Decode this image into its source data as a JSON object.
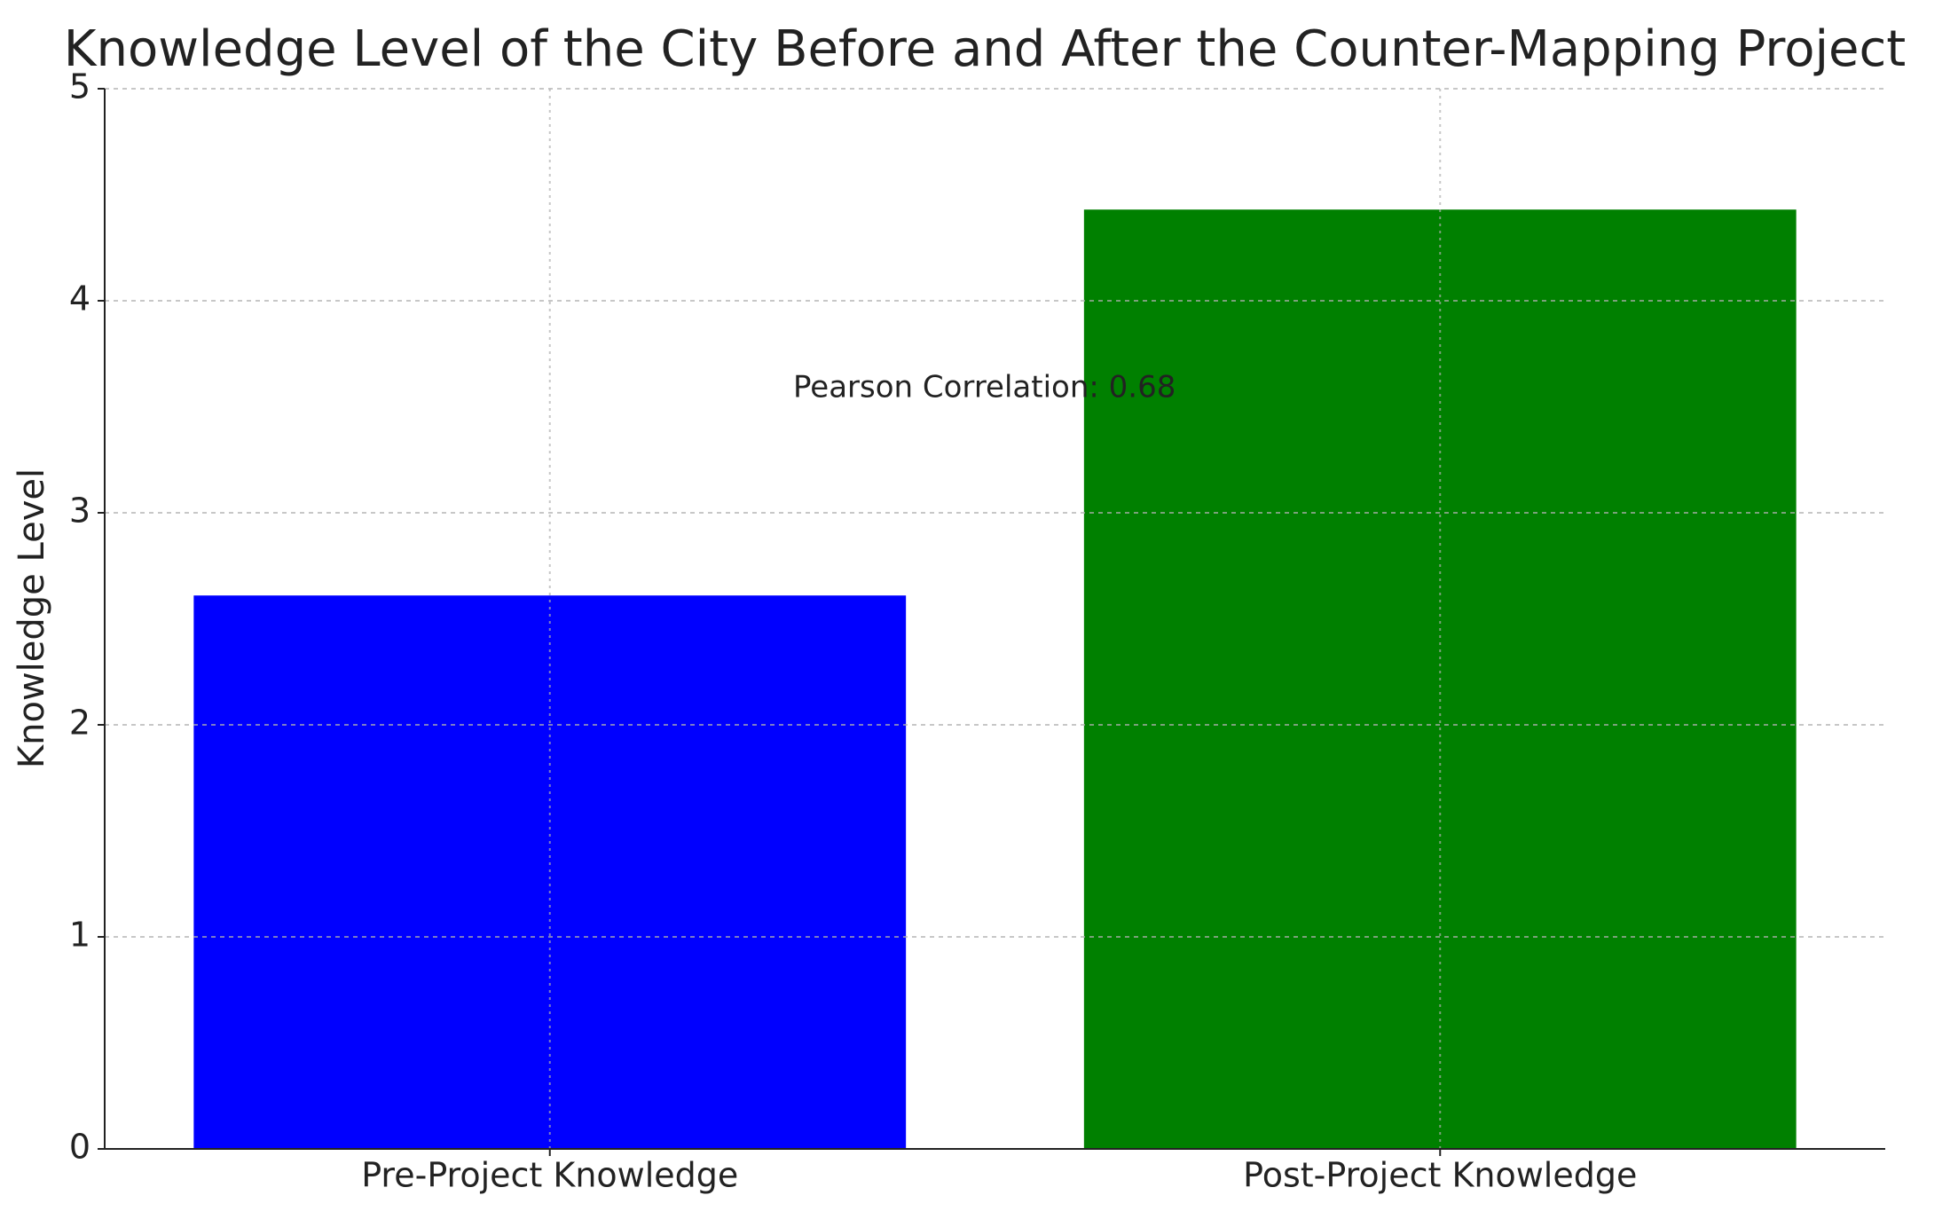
{
  "chart_data": {
    "type": "bar",
    "title": "Knowledge Level of the City Before and After the Counter-Mapping Project",
    "y_label": "Knowledge Level",
    "annotation": "Pearson Correlation: 0.68",
    "categories": [
      "Pre-Project Knowledge",
      "Post-Project Knowledge"
    ],
    "values": [
      2.61,
      4.43
    ],
    "colors": [
      "#0000ff",
      "#008000"
    ],
    "ylim": [
      0,
      5
    ],
    "yticks": [
      0,
      1,
      2,
      3,
      4,
      5
    ],
    "grid": true
  }
}
